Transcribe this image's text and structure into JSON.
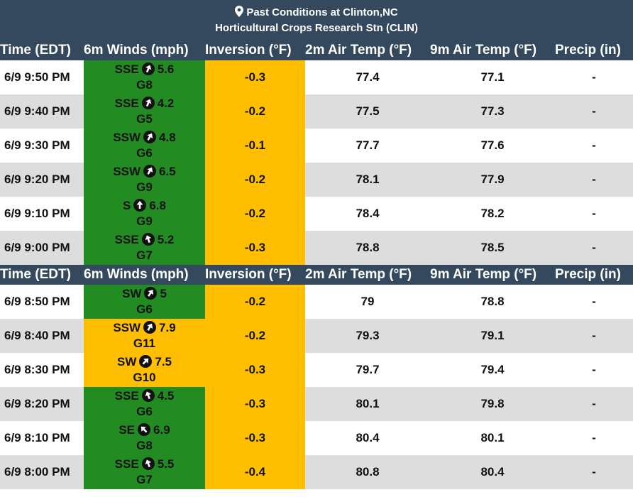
{
  "header": {
    "title": "Past Conditions at Clinton,NC",
    "subtitle": "Horticultural Crops Research Stn (CLIN)"
  },
  "columns": [
    "Time (EDT)",
    "6m Winds (mph)",
    "Inversion (°F)",
    "2m Air Temp (°F)",
    "9m Air Temp (°F)",
    "Precip (in)"
  ],
  "colors": {
    "header": "#34495e",
    "good": "#228b22",
    "caution": "#ffbf00",
    "row_shade": "#dddddd"
  },
  "rows": [
    {
      "time": "6/9 9:50 PM",
      "dir": "SSE",
      "speed": "5.6",
      "gust": "G8",
      "inversion": "-0.3",
      "t2m": "77.4",
      "t9m": "77.1",
      "precip": "-",
      "wind_status": "good",
      "arrow_deg": 22.5
    },
    {
      "time": "6/9 9:40 PM",
      "dir": "SSE",
      "speed": "4.2",
      "gust": "G5",
      "inversion": "-0.2",
      "t2m": "77.5",
      "t9m": "77.3",
      "precip": "-",
      "wind_status": "good",
      "arrow_deg": 22.5
    },
    {
      "time": "6/9 9:30 PM",
      "dir": "SSW",
      "speed": "4.8",
      "gust": "G6",
      "inversion": "-0.1",
      "t2m": "77.7",
      "t9m": "77.6",
      "precip": "-",
      "wind_status": "good",
      "arrow_deg": 30
    },
    {
      "time": "6/9 9:20 PM",
      "dir": "SSW",
      "speed": "6.5",
      "gust": "G9",
      "inversion": "-0.2",
      "t2m": "78.1",
      "t9m": "77.9",
      "precip": "-",
      "wind_status": "good",
      "arrow_deg": 30
    },
    {
      "time": "6/9 9:10 PM",
      "dir": "S",
      "speed": "6.8",
      "gust": "G9",
      "inversion": "-0.2",
      "t2m": "78.4",
      "t9m": "78.2",
      "precip": "-",
      "wind_status": "good",
      "arrow_deg": 0
    },
    {
      "time": "6/9 9:00 PM",
      "dir": "SSE",
      "speed": "5.2",
      "gust": "G7",
      "inversion": "-0.3",
      "t2m": "78.8",
      "t9m": "78.5",
      "precip": "-",
      "wind_status": "good",
      "arrow_deg": -20
    },
    {
      "time": "6/9 8:50 PM",
      "dir": "SW",
      "speed": "5",
      "gust": "G6",
      "inversion": "-0.2",
      "t2m": "79",
      "t9m": "78.8",
      "precip": "-",
      "wind_status": "good",
      "arrow_deg": 35
    },
    {
      "time": "6/9 8:40 PM",
      "dir": "SSW",
      "speed": "7.9",
      "gust": "G11",
      "inversion": "-0.2",
      "t2m": "79.3",
      "t9m": "79.1",
      "precip": "-",
      "wind_status": "caution",
      "arrow_deg": 30
    },
    {
      "time": "6/9 8:30 PM",
      "dir": "SW",
      "speed": "7.5",
      "gust": "G10",
      "inversion": "-0.3",
      "t2m": "79.7",
      "t9m": "79.4",
      "precip": "-",
      "wind_status": "caution",
      "arrow_deg": 45
    },
    {
      "time": "6/9 8:20 PM",
      "dir": "SSE",
      "speed": "4.5",
      "gust": "G6",
      "inversion": "-0.3",
      "t2m": "80.1",
      "t9m": "79.8",
      "precip": "-",
      "wind_status": "good",
      "arrow_deg": -20
    },
    {
      "time": "6/9 8:10 PM",
      "dir": "SE",
      "speed": "6.9",
      "gust": "G8",
      "inversion": "-0.3",
      "t2m": "80.4",
      "t9m": "80.1",
      "precip": "-",
      "wind_status": "good",
      "arrow_deg": -45
    },
    {
      "time": "6/9 8:00 PM",
      "dir": "SSE",
      "speed": "5.5",
      "gust": "G7",
      "inversion": "-0.4",
      "t2m": "80.8",
      "t9m": "80.4",
      "precip": "-",
      "wind_status": "good",
      "arrow_deg": -20
    }
  ]
}
